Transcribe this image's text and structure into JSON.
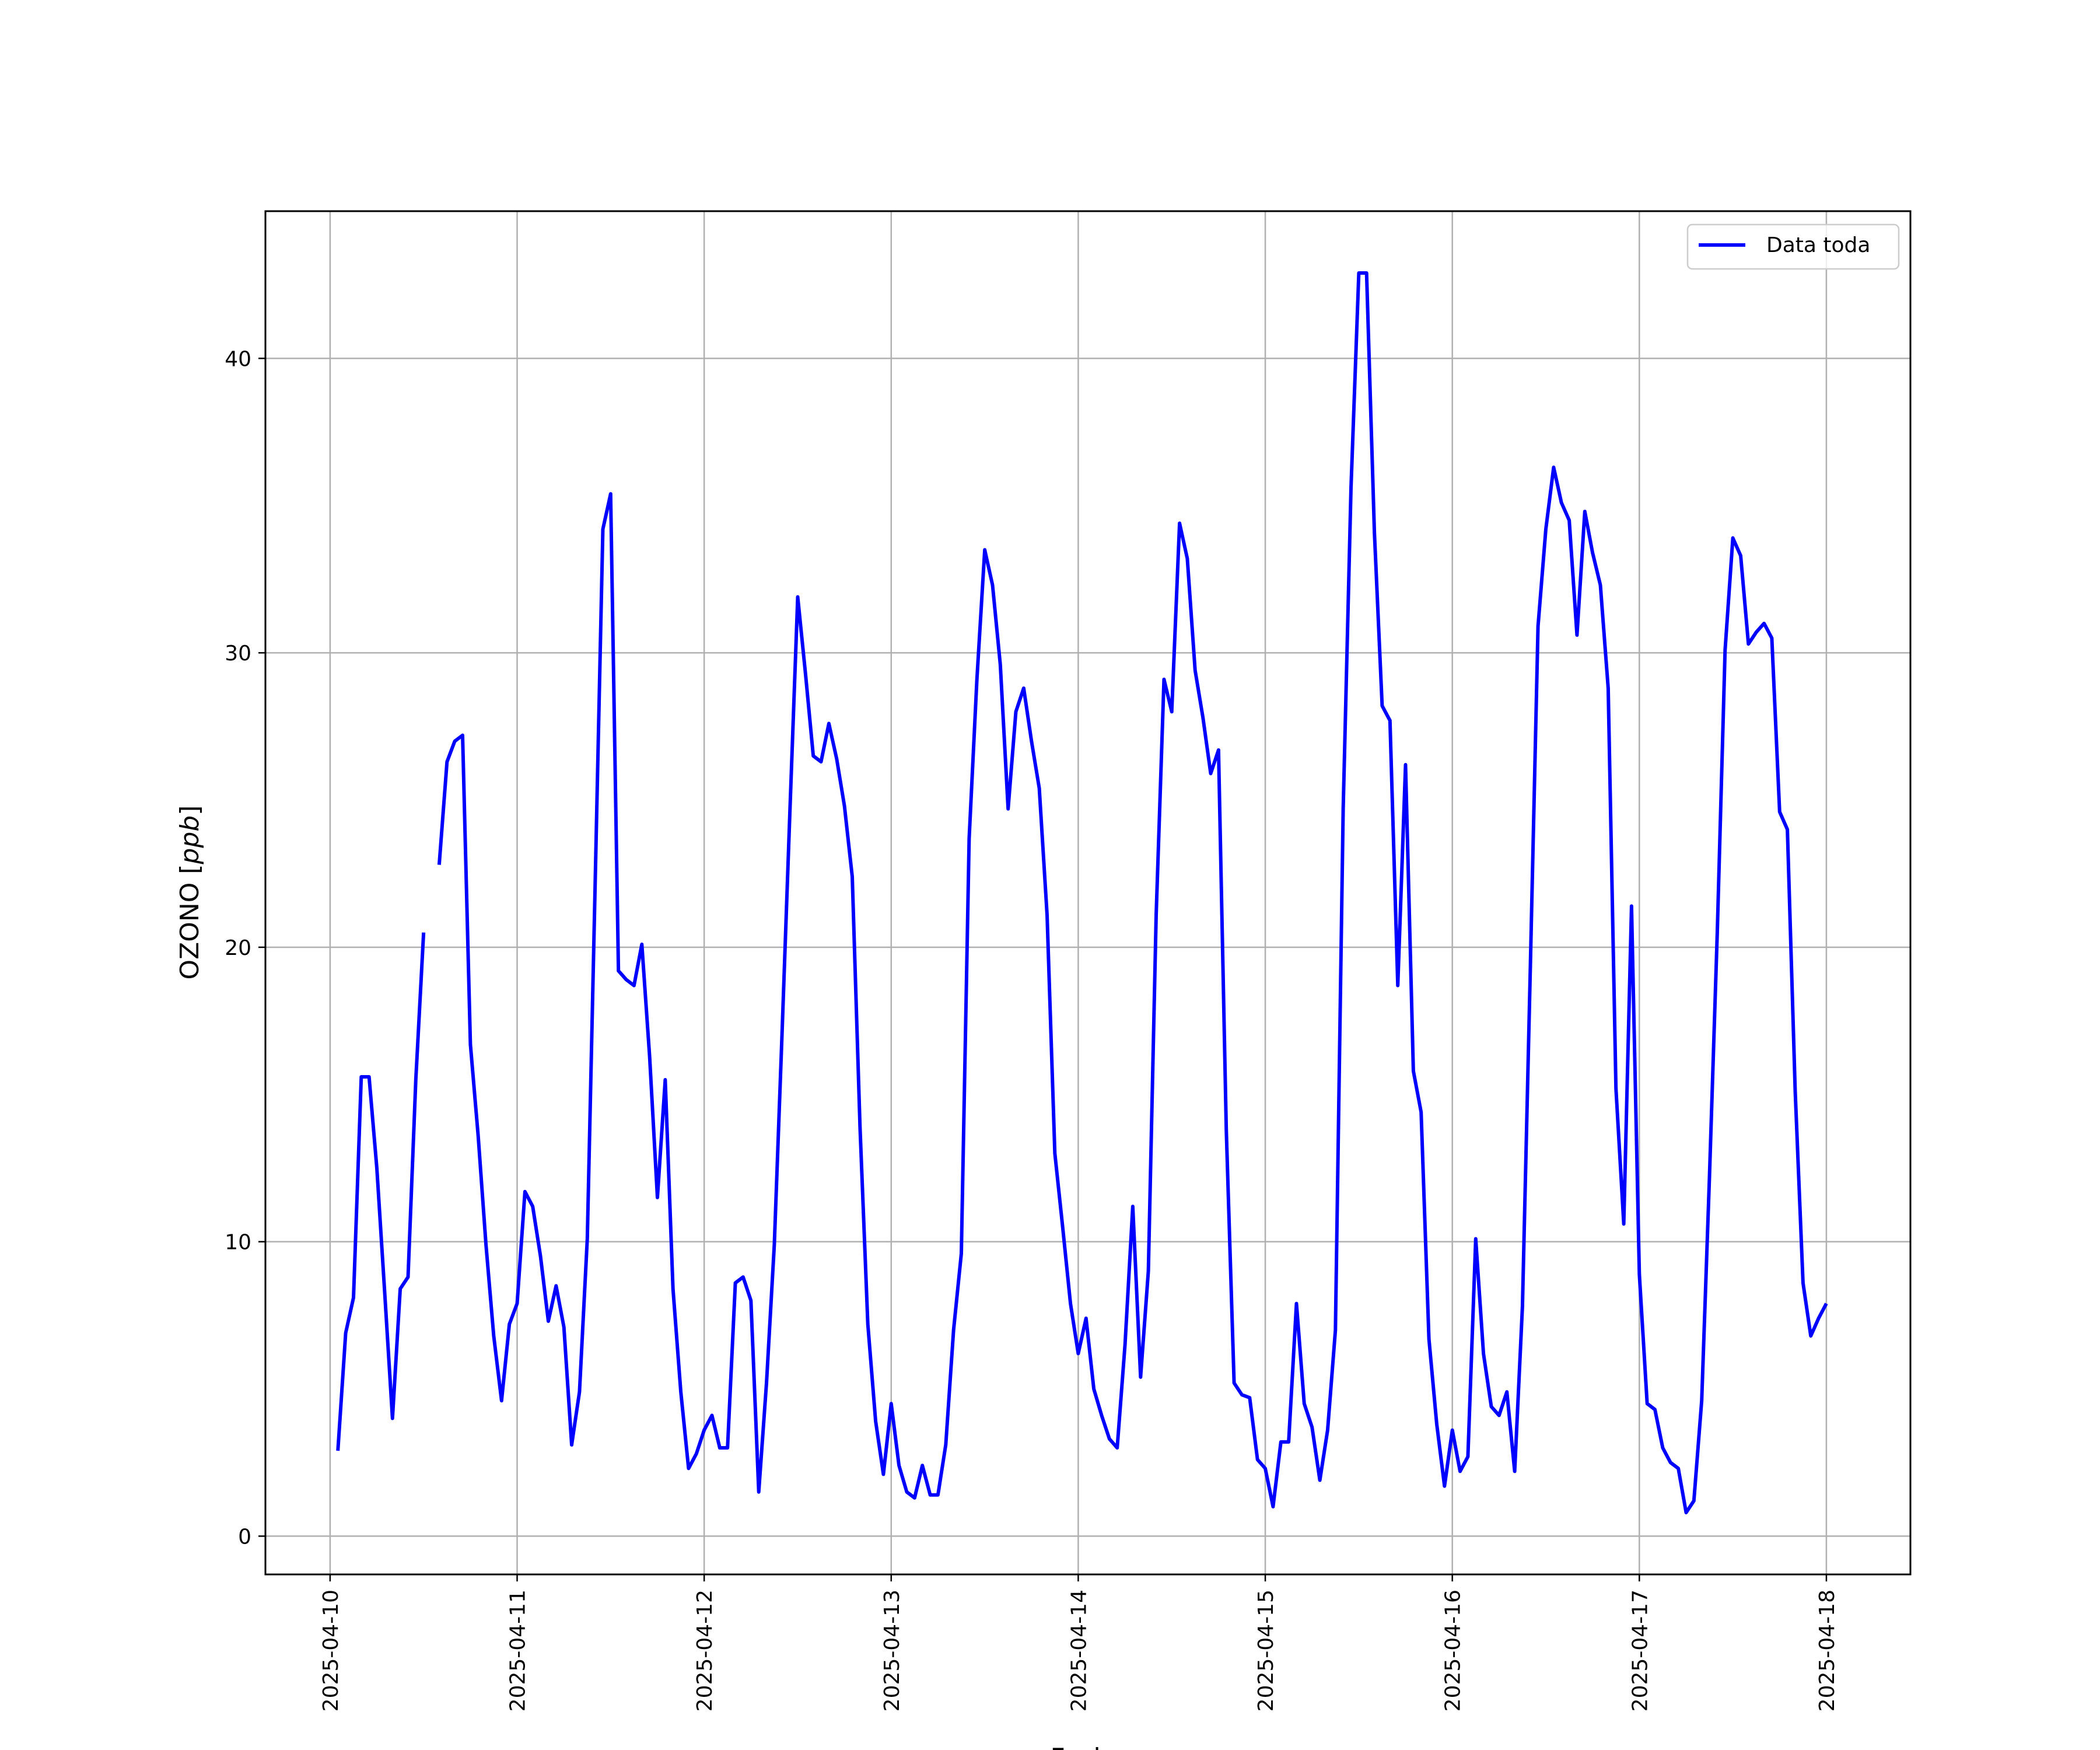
{
  "chart_data": {
    "type": "line",
    "title": "",
    "xlabel": "Fecha",
    "ylabel": "OZONO [ppb]",
    "ylabel_italic_unit": "ppb",
    "ylabel_prefix": "OZONO [",
    "ylabel_suffix": "]",
    "x_tick_labels": [
      "2025-04-10",
      "2025-04-11",
      "2025-04-12",
      "2025-04-13",
      "2025-04-14",
      "2025-04-15",
      "2025-04-16",
      "2025-04-17",
      "2025-04-18"
    ],
    "y_ticks": [
      0,
      10,
      20,
      30,
      40
    ],
    "xlim": [
      "2025-04-09 15:42",
      "2025-04-18 10:47"
    ],
    "ylim": [
      -1.3,
      45.0
    ],
    "grid": true,
    "legend_position": "upper right",
    "series": [
      {
        "name": "Data toda",
        "color": "#0000ff",
        "points": [
          [
            "2025-04-10 01:00",
            2.9
          ],
          [
            "2025-04-10 02:00",
            6.9
          ],
          [
            "2025-04-10 03:00",
            8.1
          ],
          [
            "2025-04-10 04:00",
            15.6
          ],
          [
            "2025-04-10 05:00",
            15.6
          ],
          [
            "2025-04-10 06:00",
            12.5
          ],
          [
            "2025-04-10 07:00",
            8.3
          ],
          [
            "2025-04-10 08:00",
            4.0
          ],
          [
            "2025-04-10 09:00",
            8.4
          ],
          [
            "2025-04-10 10:00",
            8.8
          ],
          [
            "2025-04-10 11:00",
            15.5
          ],
          [
            "2025-04-10 12:00",
            20.5
          ],
          [
            "2025-04-10 13:00",
            null
          ],
          [
            "2025-04-10 14:00",
            22.8
          ],
          [
            "2025-04-10 15:00",
            26.3
          ],
          [
            "2025-04-10 16:00",
            27.0
          ],
          [
            "2025-04-10 17:00",
            27.2
          ],
          [
            "2025-04-10 18:00",
            16.7
          ],
          [
            "2025-04-10 19:00",
            13.6
          ],
          [
            "2025-04-10 20:00",
            9.9
          ],
          [
            "2025-04-10 21:00",
            6.8
          ],
          [
            "2025-04-10 22:00",
            4.6
          ],
          [
            "2025-04-10 23:00",
            7.2
          ],
          [
            "2025-04-11 00:00",
            7.9
          ],
          [
            "2025-04-11 01:00",
            11.7
          ],
          [
            "2025-04-11 02:00",
            11.2
          ],
          [
            "2025-04-11 03:00",
            9.5
          ],
          [
            "2025-04-11 04:00",
            7.3
          ],
          [
            "2025-04-11 05:00",
            8.5
          ],
          [
            "2025-04-11 06:00",
            7.1
          ],
          [
            "2025-04-11 07:00",
            3.1
          ],
          [
            "2025-04-11 08:00",
            4.9
          ],
          [
            "2025-04-11 09:00",
            10.1
          ],
          [
            "2025-04-11 10:00",
            22.0
          ],
          [
            "2025-04-11 11:00",
            34.2
          ],
          [
            "2025-04-11 12:00",
            35.4
          ],
          [
            "2025-04-11 13:00",
            19.2
          ],
          [
            "2025-04-11 14:00",
            18.9
          ],
          [
            "2025-04-11 15:00",
            18.7
          ],
          [
            "2025-04-11 16:00",
            20.1
          ],
          [
            "2025-04-11 17:00",
            16.3
          ],
          [
            "2025-04-11 18:00",
            11.5
          ],
          [
            "2025-04-11 19:00",
            15.5
          ],
          [
            "2025-04-11 20:00",
            8.4
          ],
          [
            "2025-04-11 21:00",
            4.9
          ],
          [
            "2025-04-11 22:00",
            2.3
          ],
          [
            "2025-04-11 23:00",
            2.8
          ],
          [
            "2025-04-12 00:00",
            3.6
          ],
          [
            "2025-04-12 01:00",
            4.1
          ],
          [
            "2025-04-12 02:00",
            3.0
          ],
          [
            "2025-04-12 03:00",
            3.0
          ],
          [
            "2025-04-12 04:00",
            8.6
          ],
          [
            "2025-04-12 05:00",
            8.8
          ],
          [
            "2025-04-12 06:00",
            8.0
          ],
          [
            "2025-04-12 07:00",
            1.5
          ],
          [
            "2025-04-12 08:00",
            5.2
          ],
          [
            "2025-04-12 09:00",
            9.9
          ],
          [
            "2025-04-12 10:00",
            17.1
          ],
          [
            "2025-04-12 11:00",
            24.6
          ],
          [
            "2025-04-12 12:00",
            31.9
          ],
          [
            "2025-04-12 13:00",
            29.3
          ],
          [
            "2025-04-12 14:00",
            26.5
          ],
          [
            "2025-04-12 15:00",
            26.3
          ],
          [
            "2025-04-12 16:00",
            27.6
          ],
          [
            "2025-04-12 17:00",
            26.4
          ],
          [
            "2025-04-12 18:00",
            24.8
          ],
          [
            "2025-04-12 19:00",
            22.4
          ],
          [
            "2025-04-12 20:00",
            13.9
          ],
          [
            "2025-04-12 21:00",
            7.2
          ],
          [
            "2025-04-12 22:00",
            3.9
          ],
          [
            "2025-04-12 23:00",
            2.1
          ],
          [
            "2025-04-13 00:00",
            4.5
          ],
          [
            "2025-04-13 01:00",
            2.4
          ],
          [
            "2025-04-13 02:00",
            1.5
          ],
          [
            "2025-04-13 03:00",
            1.3
          ],
          [
            "2025-04-13 04:00",
            2.4
          ],
          [
            "2025-04-13 05:00",
            1.4
          ],
          [
            "2025-04-13 06:00",
            1.4
          ],
          [
            "2025-04-13 07:00",
            3.1
          ],
          [
            "2025-04-13 08:00",
            7.0
          ],
          [
            "2025-04-13 09:00",
            9.6
          ],
          [
            "2025-04-13 10:00",
            23.7
          ],
          [
            "2025-04-13 11:00",
            29.1
          ],
          [
            "2025-04-13 12:00",
            33.5
          ],
          [
            "2025-04-13 13:00",
            32.3
          ],
          [
            "2025-04-13 14:00",
            29.6
          ],
          [
            "2025-04-13 15:00",
            24.7
          ],
          [
            "2025-04-13 16:00",
            28.0
          ],
          [
            "2025-04-13 17:00",
            28.8
          ],
          [
            "2025-04-13 18:00",
            27.0
          ],
          [
            "2025-04-13 19:00",
            25.4
          ],
          [
            "2025-04-13 20:00",
            21.1
          ],
          [
            "2025-04-13 21:00",
            13.0
          ],
          [
            "2025-04-13 22:00",
            10.5
          ],
          [
            "2025-04-13 23:00",
            7.9
          ],
          [
            "2025-04-14 00:00",
            6.2
          ],
          [
            "2025-04-14 01:00",
            7.4
          ],
          [
            "2025-04-14 02:00",
            5.0
          ],
          [
            "2025-04-14 03:00",
            4.1
          ],
          [
            "2025-04-14 04:00",
            3.3
          ],
          [
            "2025-04-14 05:00",
            3.0
          ],
          [
            "2025-04-14 06:00",
            6.5
          ],
          [
            "2025-04-14 07:00",
            11.2
          ],
          [
            "2025-04-14 08:00",
            5.4
          ],
          [
            "2025-04-14 09:00",
            9.0
          ],
          [
            "2025-04-14 10:00",
            21.1
          ],
          [
            "2025-04-14 11:00",
            29.1
          ],
          [
            "2025-04-14 12:00",
            28.0
          ],
          [
            "2025-04-14 13:00",
            34.4
          ],
          [
            "2025-04-14 14:00",
            33.2
          ],
          [
            "2025-04-14 15:00",
            29.4
          ],
          [
            "2025-04-14 16:00",
            27.8
          ],
          [
            "2025-04-14 17:00",
            25.9
          ],
          [
            "2025-04-14 18:00",
            26.7
          ],
          [
            "2025-04-14 19:00",
            13.8
          ],
          [
            "2025-04-14 20:00",
            5.2
          ],
          [
            "2025-04-14 21:00",
            4.8
          ],
          [
            "2025-04-14 22:00",
            4.7
          ],
          [
            "2025-04-14 23:00",
            2.6
          ],
          [
            "2025-04-15 00:00",
            2.3
          ],
          [
            "2025-04-15 01:00",
            1.0
          ],
          [
            "2025-04-15 02:00",
            3.2
          ],
          [
            "2025-04-15 03:00",
            3.2
          ],
          [
            "2025-04-15 04:00",
            7.9
          ],
          [
            "2025-04-15 05:00",
            4.5
          ],
          [
            "2025-04-15 06:00",
            3.7
          ],
          [
            "2025-04-15 07:00",
            1.9
          ],
          [
            "2025-04-15 08:00",
            3.6
          ],
          [
            "2025-04-15 09:00",
            7.0
          ],
          [
            "2025-04-15 10:00",
            24.7
          ],
          [
            "2025-04-15 11:00",
            35.6
          ],
          [
            "2025-04-15 12:00",
            42.9
          ],
          [
            "2025-04-15 13:00",
            42.9
          ],
          [
            "2025-04-15 14:00",
            34.1
          ],
          [
            "2025-04-15 15:00",
            28.2
          ],
          [
            "2025-04-15 16:00",
            27.7
          ],
          [
            "2025-04-15 17:00",
            18.7
          ],
          [
            "2025-04-15 18:00",
            26.2
          ],
          [
            "2025-04-15 19:00",
            15.8
          ],
          [
            "2025-04-15 20:00",
            14.4
          ],
          [
            "2025-04-15 21:00",
            6.7
          ],
          [
            "2025-04-15 22:00",
            3.8
          ],
          [
            "2025-04-15 23:00",
            1.7
          ],
          [
            "2025-04-16 00:00",
            3.6
          ],
          [
            "2025-04-16 01:00",
            2.2
          ],
          [
            "2025-04-16 02:00",
            2.7
          ],
          [
            "2025-04-16 03:00",
            10.1
          ],
          [
            "2025-04-16 04:00",
            6.2
          ],
          [
            "2025-04-16 05:00",
            4.4
          ],
          [
            "2025-04-16 06:00",
            4.1
          ],
          [
            "2025-04-16 07:00",
            4.9
          ],
          [
            "2025-04-16 08:00",
            2.2
          ],
          [
            "2025-04-16 09:00",
            7.8
          ],
          [
            "2025-04-16 10:00",
            19.2
          ],
          [
            "2025-04-16 11:00",
            30.9
          ],
          [
            "2025-04-16 12:00",
            34.2
          ],
          [
            "2025-04-16 13:00",
            36.3
          ],
          [
            "2025-04-16 14:00",
            35.1
          ],
          [
            "2025-04-16 15:00",
            34.5
          ],
          [
            "2025-04-16 16:00",
            30.6
          ],
          [
            "2025-04-16 17:00",
            34.8
          ],
          [
            "2025-04-16 18:00",
            33.4
          ],
          [
            "2025-04-16 19:00",
            32.3
          ],
          [
            "2025-04-16 20:00",
            28.8
          ],
          [
            "2025-04-16 21:00",
            15.2
          ],
          [
            "2025-04-16 22:00",
            10.6
          ],
          [
            "2025-04-16 23:00",
            21.4
          ],
          [
            "2025-04-17 00:00",
            8.9
          ],
          [
            "2025-04-17 01:00",
            4.5
          ],
          [
            "2025-04-17 02:00",
            4.3
          ],
          [
            "2025-04-17 03:00",
            3.0
          ],
          [
            "2025-04-17 04:00",
            2.5
          ],
          [
            "2025-04-17 05:00",
            2.3
          ],
          [
            "2025-04-17 06:00",
            0.8
          ],
          [
            "2025-04-17 07:00",
            1.2
          ],
          [
            "2025-04-17 08:00",
            4.6
          ],
          [
            "2025-04-17 09:00",
            12.2
          ],
          [
            "2025-04-17 10:00",
            20.5
          ],
          [
            "2025-04-17 11:00",
            30.1
          ],
          [
            "2025-04-17 12:00",
            33.9
          ],
          [
            "2025-04-17 13:00",
            33.3
          ],
          [
            "2025-04-17 14:00",
            30.3
          ],
          [
            "2025-04-17 15:00",
            30.7
          ],
          [
            "2025-04-17 16:00",
            31.0
          ],
          [
            "2025-04-17 17:00",
            30.5
          ],
          [
            "2025-04-17 18:00",
            24.6
          ],
          [
            "2025-04-17 19:00",
            24.0
          ],
          [
            "2025-04-17 20:00",
            15.1
          ],
          [
            "2025-04-17 21:00",
            8.6
          ],
          [
            "2025-04-17 22:00",
            6.8
          ],
          [
            "2025-04-17 23:00",
            7.4
          ],
          [
            "2025-04-18 00:00",
            7.9
          ]
        ]
      }
    ]
  }
}
